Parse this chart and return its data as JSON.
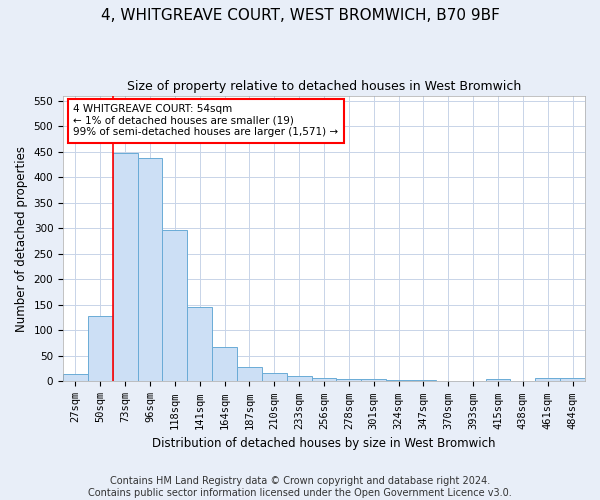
{
  "title": "4, WHITGREAVE COURT, WEST BROMWICH, B70 9BF",
  "subtitle": "Size of property relative to detached houses in West Bromwich",
  "xlabel": "Distribution of detached houses by size in West Bromwich",
  "ylabel": "Number of detached properties",
  "bar_color": "#ccdff5",
  "bar_edge_color": "#6aabd6",
  "categories": [
    "27sqm",
    "50sqm",
    "73sqm",
    "96sqm",
    "118sqm",
    "141sqm",
    "164sqm",
    "187sqm",
    "210sqm",
    "233sqm",
    "256sqm",
    "278sqm",
    "301sqm",
    "324sqm",
    "347sqm",
    "370sqm",
    "393sqm",
    "415sqm",
    "438sqm",
    "461sqm",
    "484sqm"
  ],
  "values": [
    15,
    128,
    448,
    437,
    297,
    145,
    68,
    29,
    16,
    10,
    7,
    5,
    4,
    2,
    2,
    1,
    1,
    4,
    1,
    6,
    6
  ],
  "ylim": [
    0,
    560
  ],
  "yticks": [
    0,
    50,
    100,
    150,
    200,
    250,
    300,
    350,
    400,
    450,
    500,
    550
  ],
  "vline_x": 1.5,
  "annotation_text": "4 WHITGREAVE COURT: 54sqm\n← 1% of detached houses are smaller (19)\n99% of semi-detached houses are larger (1,571) →",
  "annotation_box_color": "white",
  "annotation_box_edge_color": "red",
  "vline_color": "red",
  "footer1": "Contains HM Land Registry data © Crown copyright and database right 2024.",
  "footer2": "Contains public sector information licensed under the Open Government Licence v3.0.",
  "background_color": "#e8eef8",
  "plot_background_color": "white",
  "grid_color": "#c8d4e8",
  "title_fontsize": 11,
  "subtitle_fontsize": 9,
  "label_fontsize": 8.5,
  "tick_fontsize": 7.5,
  "footer_fontsize": 7
}
